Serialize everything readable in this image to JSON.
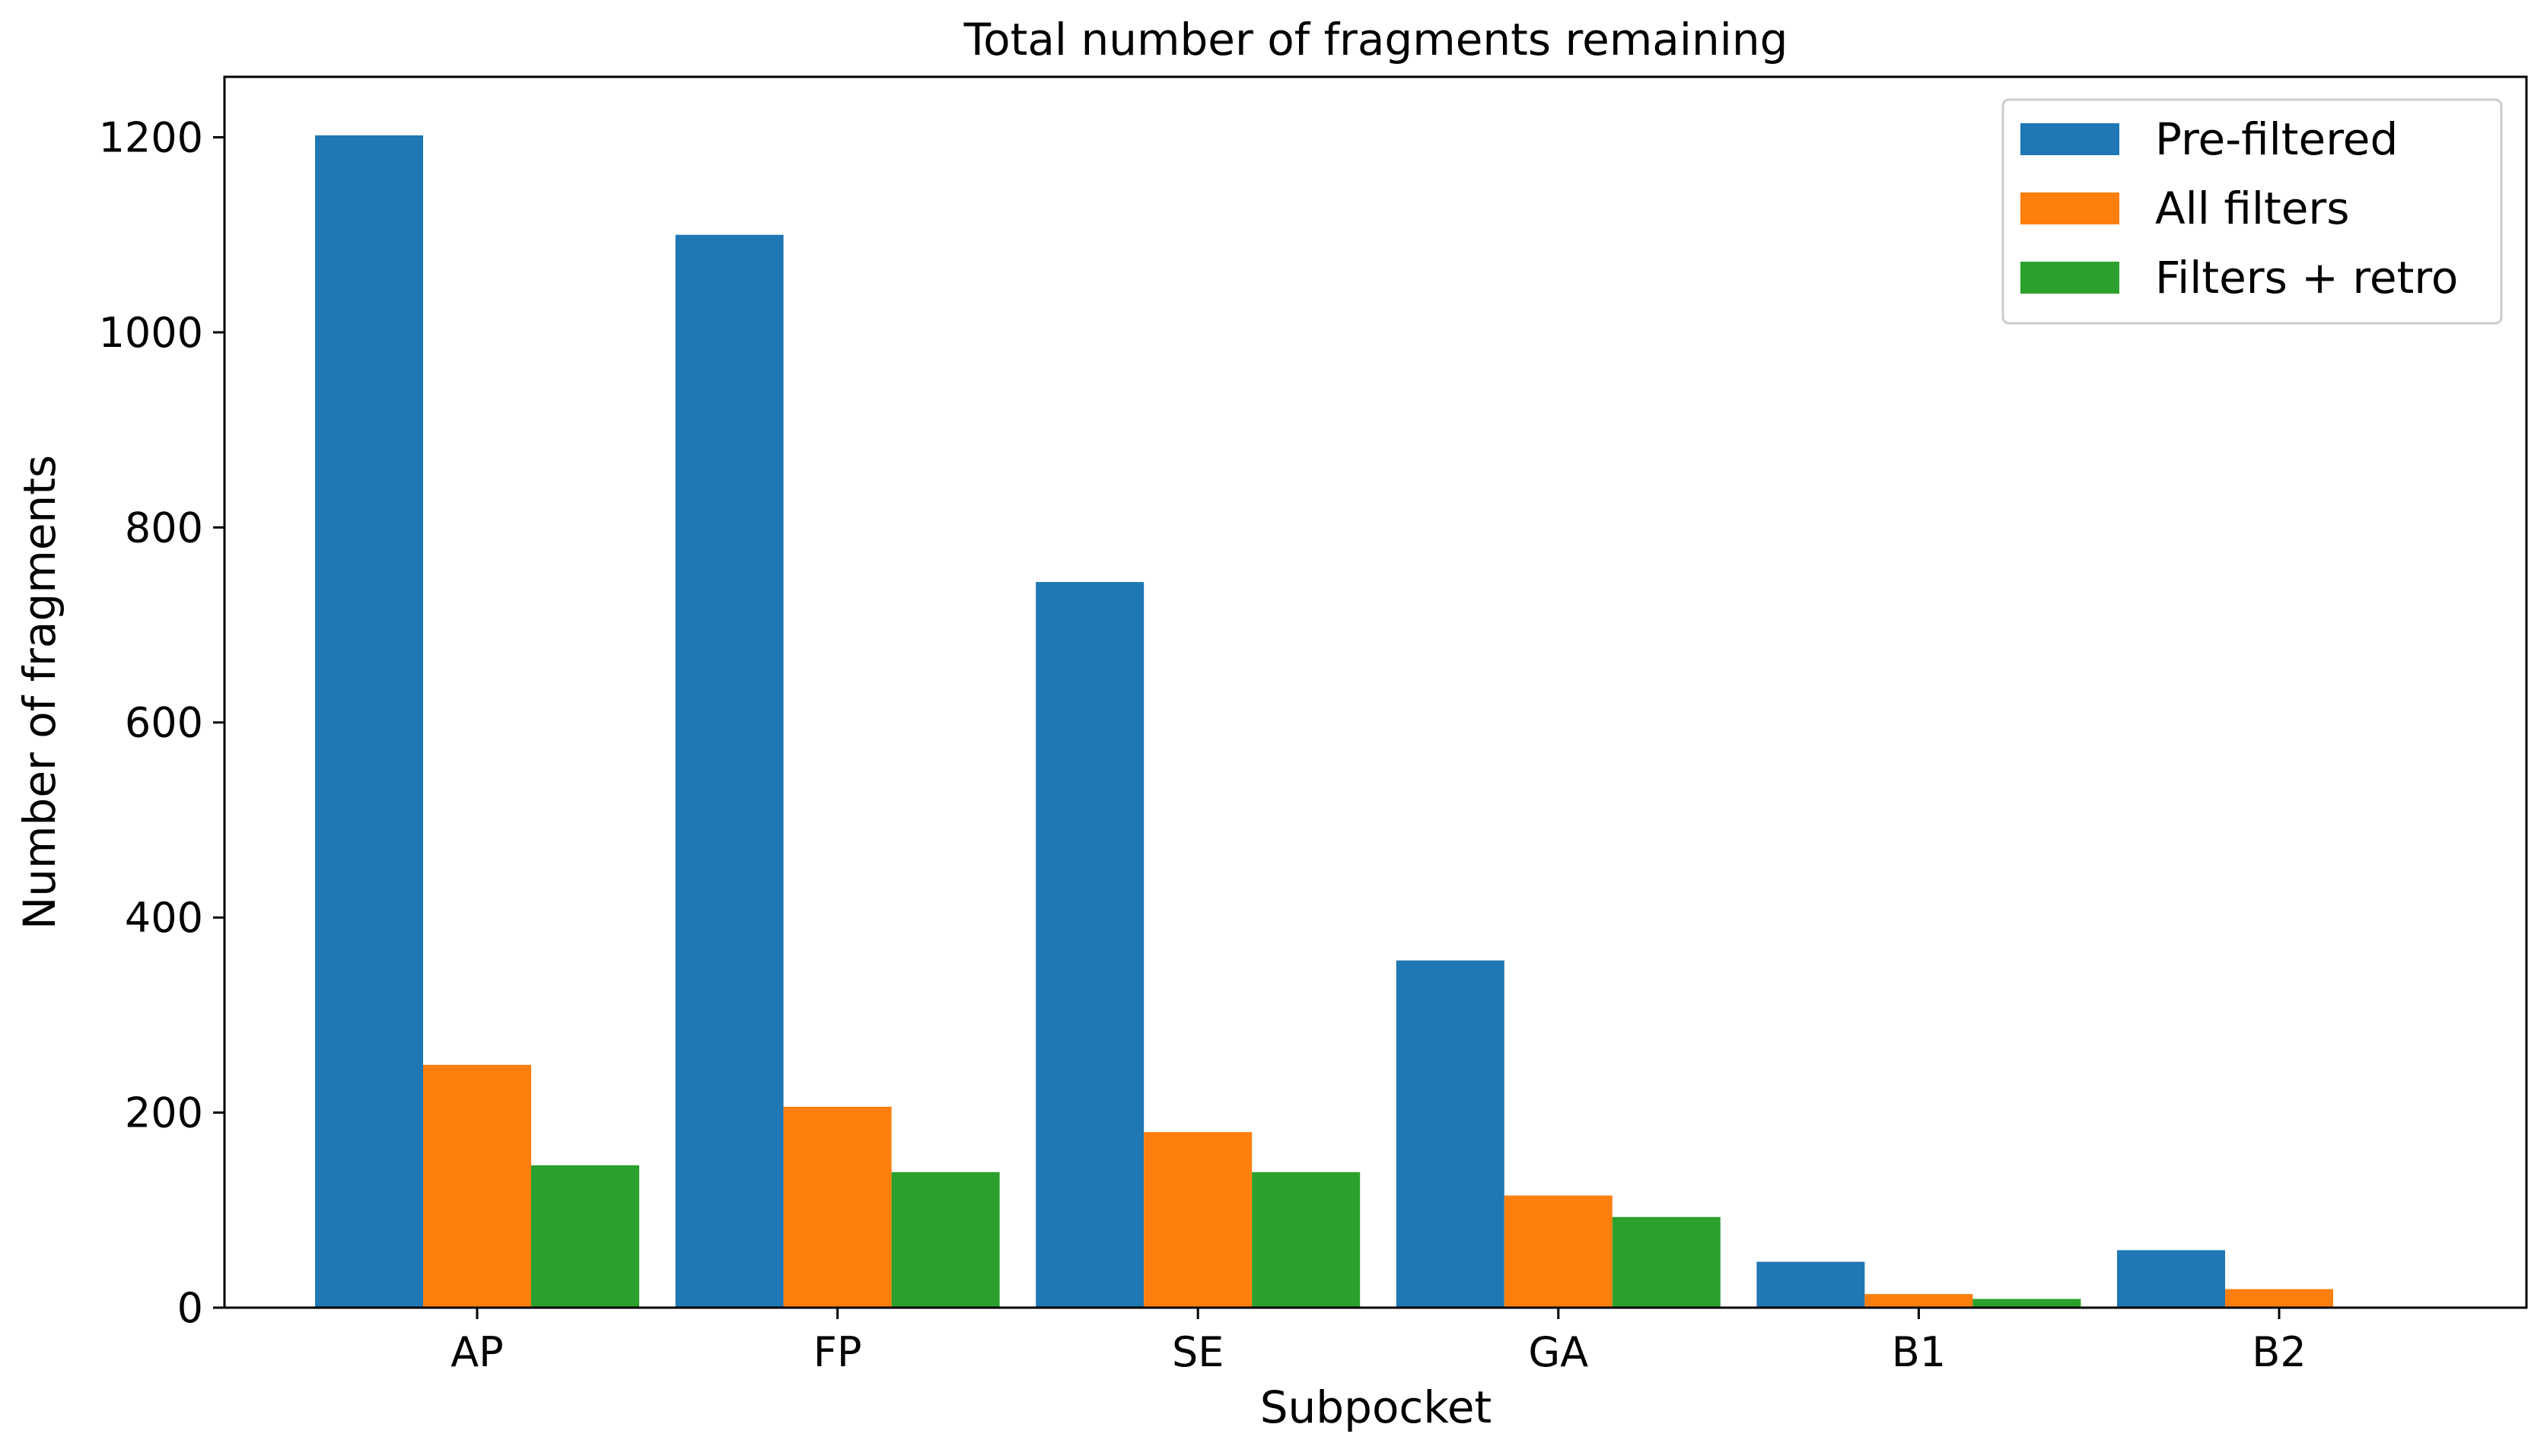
{
  "chart_data": {
    "type": "bar",
    "title": "Total number of fragments remaining",
    "xlabel": "Subpocket",
    "ylabel": "Number of fragments",
    "categories": [
      "AP",
      "FP",
      "SE",
      "GA",
      "B1",
      "B2"
    ],
    "ylim": [
      0,
      1262
    ],
    "yticks": [
      0,
      200,
      400,
      600,
      800,
      1000,
      1200
    ],
    "grid": false,
    "legend_position": "top-right",
    "series": [
      {
        "name": "Pre-filtered",
        "color": "#1f77b4",
        "values": [
          1202,
          1100,
          744,
          356,
          47,
          59
        ]
      },
      {
        "name": "All filters",
        "color": "#ff7f0e",
        "values": [
          249,
          206,
          180,
          115,
          14,
          19
        ]
      },
      {
        "name": "Filters + retro",
        "color": "#2ca02c",
        "values": [
          146,
          139,
          139,
          93,
          9,
          0
        ]
      }
    ]
  }
}
